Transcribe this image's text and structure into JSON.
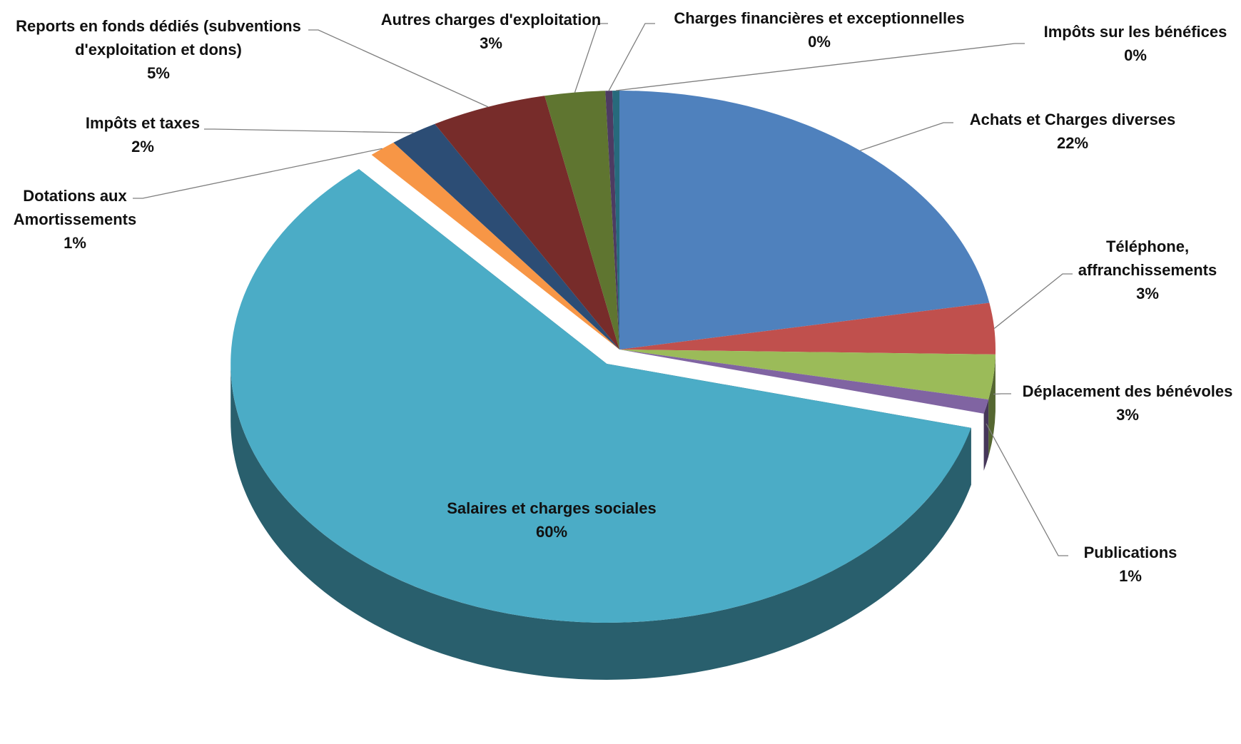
{
  "chart_data": {
    "type": "pie3d",
    "categories": [
      "Achats et Charges diverses",
      "Téléphone, affranchissements",
      "Déplacement des bénévoles",
      "Publications",
      "Salaires et charges sociales",
      "Dotations aux Amortissements",
      "Impôts et taxes",
      "Reports en fonds dédiés (subventions d'exploitation et dons)",
      "Autres charges d'exploitation",
      "Charges financières et exceptionnelles",
      "Impôts sur les bénéfices"
    ],
    "values": [
      22.2,
      3.2,
      2.8,
      0.9,
      59.8,
      1.2,
      2.1,
      5.0,
      2.6,
      0.3,
      0.3
    ],
    "value_labels": [
      "22%",
      "3%",
      "3%",
      "1%",
      "60%",
      "1%",
      "2%",
      "5%",
      "3%",
      "0%",
      "0%"
    ],
    "colors": [
      "#4f81bd",
      "#c0504d",
      "#9bbb59",
      "#8064a2",
      "#4bacc6",
      "#f79646",
      "#2c4d75",
      "#772c2a",
      "#5f7530",
      "#4d3b62",
      "#276a7c"
    ]
  }
}
